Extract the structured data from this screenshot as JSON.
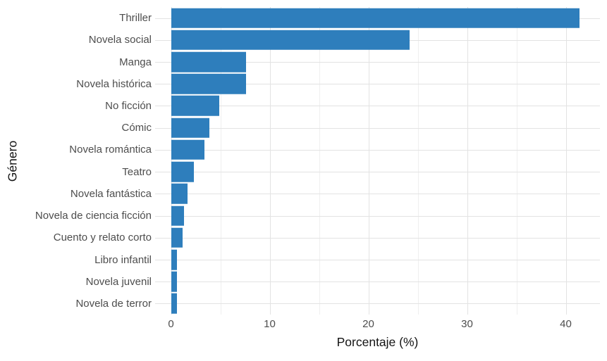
{
  "chart_data": {
    "type": "bar",
    "orientation": "horizontal",
    "title": "",
    "xlabel": "Porcentaje (%)",
    "ylabel": "Género",
    "categories": [
      "Thriller",
      "Novela social",
      "Manga",
      "Novela histórica",
      "No ficción",
      "Cómic",
      "Novela romántica",
      "Teatro",
      "Novela fantástica",
      "Novela de ciencia ficción",
      "Cuento y relato corto",
      "Libro infantil",
      "Novela juvenil",
      "Novela de terror"
    ],
    "values": [
      41.4,
      24.2,
      7.6,
      7.6,
      4.9,
      3.9,
      3.4,
      2.3,
      1.7,
      1.3,
      1.2,
      0.6,
      0.6,
      0.6
    ],
    "xlim": [
      0,
      43.5
    ],
    "x_ticks": [
      0,
      10,
      20,
      30,
      40
    ],
    "x_minor_ticks": [
      5,
      15,
      25,
      35
    ],
    "grid": true,
    "legend": false,
    "colors": {
      "bar": "#2E7EBC",
      "grid_major": "#E3E3E3",
      "grid_minor": "#EFEFEF",
      "axis_text": "#4D4D4D",
      "axis_title": "#141414",
      "background": "#FFFFFF"
    }
  }
}
